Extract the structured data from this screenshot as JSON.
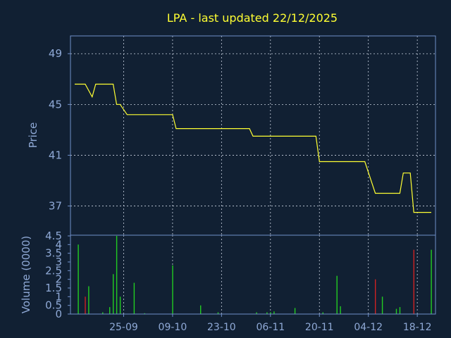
{
  "chart_data": {
    "title": "LPA - last updated 22/12/2025",
    "colors": {
      "background": "#112033",
      "frame": "#6f8fc8",
      "text": "#8fa9d6",
      "title": "#ffff33",
      "price_line": "#ffff33",
      "volume_up": "#22cc22",
      "volume_down": "#cc2222",
      "grid": "#c9d2e0"
    },
    "x_ticks": [
      "25-09",
      "09-10",
      "23-10",
      "06-11",
      "20-11",
      "04-12",
      "18-12"
    ],
    "date_range": [
      "2025-09-11",
      "2025-12-22"
    ],
    "price_chart": {
      "type": "line",
      "ylabel": "Price",
      "yticks": [
        "49",
        "45",
        "41",
        "37"
      ],
      "ylim": [
        34.7,
        50.4
      ],
      "grid": true,
      "series": [
        {
          "points": [
            [
              "2025-09-11",
              46.6
            ],
            [
              "2025-09-14",
              46.6
            ],
            [
              "2025-09-16",
              45.6
            ],
            [
              "2025-09-17",
              46.6
            ],
            [
              "2025-09-22",
              46.6
            ],
            [
              "2025-09-23",
              45.0
            ],
            [
              "2025-09-24",
              45.0
            ],
            [
              "2025-09-26",
              44.2
            ],
            [
              "2025-10-09",
              44.2
            ],
            [
              "2025-10-10",
              43.1
            ],
            [
              "2025-10-31",
              43.1
            ],
            [
              "2025-11-01",
              42.5
            ],
            [
              "2025-11-19",
              42.5
            ],
            [
              "2025-11-20",
              40.5
            ],
            [
              "2025-12-03",
              40.5
            ],
            [
              "2025-12-06",
              38.0
            ],
            [
              "2025-12-13",
              38.0
            ],
            [
              "2025-12-14",
              39.6
            ],
            [
              "2025-12-16",
              39.6
            ],
            [
              "2025-12-17",
              36.5
            ],
            [
              "2025-12-22",
              36.5
            ]
          ]
        }
      ]
    },
    "volume_chart": {
      "type": "bar",
      "ylabel": "Volume (0000)",
      "yticks": [
        "0",
        "0.5",
        "1",
        "1.5",
        "2",
        "2.5",
        "3",
        "3.5",
        "4",
        "4.5"
      ],
      "ylim": [
        0,
        4.5
      ],
      "bars": [
        {
          "date": "2025-09-12",
          "value": 4.0,
          "direction": "up"
        },
        {
          "date": "2025-09-14",
          "value": 1.0,
          "direction": "down"
        },
        {
          "date": "2025-09-15",
          "value": 1.6,
          "direction": "up"
        },
        {
          "date": "2025-09-19",
          "value": 0.1,
          "direction": "up"
        },
        {
          "date": "2025-09-21",
          "value": 0.4,
          "direction": "up"
        },
        {
          "date": "2025-09-22",
          "value": 2.3,
          "direction": "up"
        },
        {
          "date": "2025-09-23",
          "value": 4.5,
          "direction": "up"
        },
        {
          "date": "2025-09-24",
          "value": 1.0,
          "direction": "up"
        },
        {
          "date": "2025-09-28",
          "value": 1.8,
          "direction": "up"
        },
        {
          "date": "2025-10-01",
          "value": 0.05,
          "direction": "up"
        },
        {
          "date": "2025-10-09",
          "value": 2.8,
          "direction": "up"
        },
        {
          "date": "2025-10-17",
          "value": 0.5,
          "direction": "up"
        },
        {
          "date": "2025-10-22",
          "value": 0.1,
          "direction": "up"
        },
        {
          "date": "2025-11-02",
          "value": 0.1,
          "direction": "up"
        },
        {
          "date": "2025-11-05",
          "value": 0.1,
          "direction": "up"
        },
        {
          "date": "2025-11-06",
          "value": 0.1,
          "direction": "up"
        },
        {
          "date": "2025-11-07",
          "value": 0.15,
          "direction": "up"
        },
        {
          "date": "2025-11-13",
          "value": 0.35,
          "direction": "up"
        },
        {
          "date": "2025-11-21",
          "value": 0.1,
          "direction": "up"
        },
        {
          "date": "2025-11-25",
          "value": 2.2,
          "direction": "up"
        },
        {
          "date": "2025-11-26",
          "value": 0.45,
          "direction": "up"
        },
        {
          "date": "2025-12-06",
          "value": 2.0,
          "direction": "down"
        },
        {
          "date": "2025-12-08",
          "value": 1.0,
          "direction": "up"
        },
        {
          "date": "2025-12-12",
          "value": 0.3,
          "direction": "up"
        },
        {
          "date": "2025-12-13",
          "value": 0.4,
          "direction": "up"
        },
        {
          "date": "2025-12-17",
          "value": 3.7,
          "direction": "down"
        },
        {
          "date": "2025-12-22",
          "value": 3.7,
          "direction": "up"
        }
      ]
    }
  }
}
